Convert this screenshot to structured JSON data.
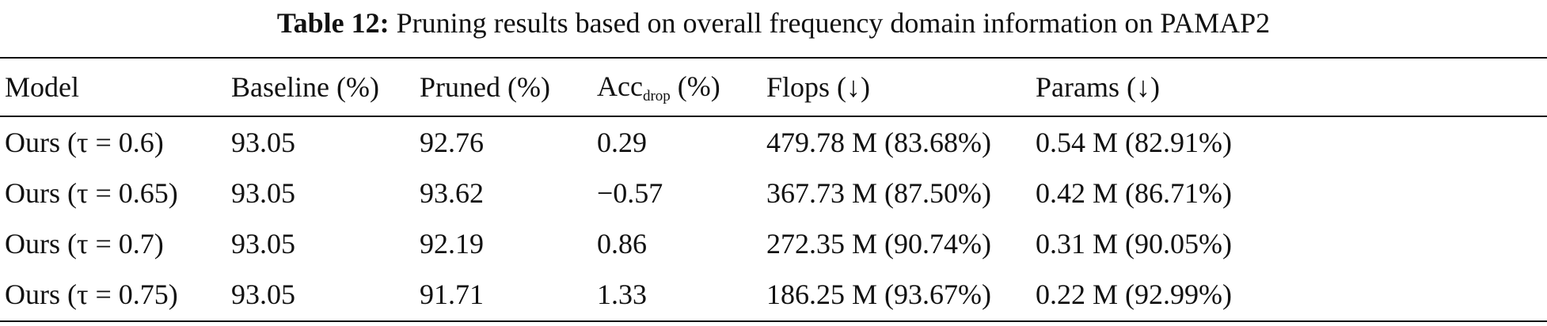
{
  "caption": {
    "label": "Table 12:",
    "text": "Pruning results based on overall frequency domain information on PAMAP2"
  },
  "table": {
    "headers": [
      {
        "main": "Model",
        "sub": "",
        "suffix": ""
      },
      {
        "main": "Baseline (%)",
        "sub": "",
        "suffix": ""
      },
      {
        "main": "Pruned (%)",
        "sub": "",
        "suffix": ""
      },
      {
        "main": "Acc",
        "sub": "drop",
        "suffix": " (%)"
      },
      {
        "main": "Flops (↓)",
        "sub": "",
        "suffix": ""
      },
      {
        "main": "Params (↓)",
        "sub": "",
        "suffix": ""
      }
    ],
    "rows": [
      [
        "Ours (τ = 0.6)",
        "93.05",
        "92.76",
        "0.29",
        "479.78 M (83.68%)",
        "0.54 M (82.91%)"
      ],
      [
        "Ours (τ = 0.65)",
        "93.05",
        "93.62",
        "−0.57",
        "367.73 M (87.50%)",
        "0.42 M (86.71%)"
      ],
      [
        "Ours (τ = 0.7)",
        "93.05",
        "92.19",
        "0.86",
        "272.35 M (90.74%)",
        "0.31 M (90.05%)"
      ],
      [
        "Ours (τ = 0.75)",
        "93.05",
        "91.71",
        "1.33",
        "186.25 M (93.67%)",
        "0.22 M (92.99%)"
      ]
    ]
  }
}
